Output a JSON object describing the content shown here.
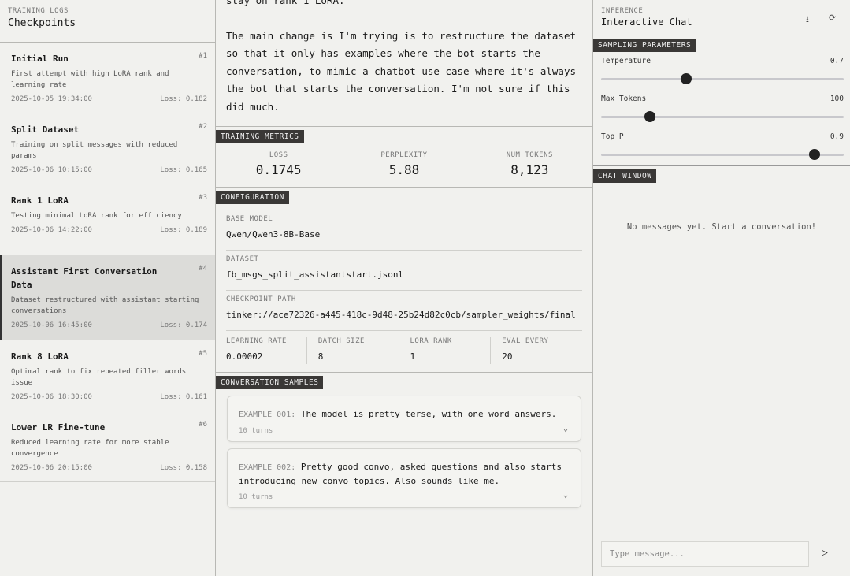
{
  "left": {
    "eyebrow": "TRAINING LOGS",
    "title": "Checkpoints",
    "items": [
      {
        "name": "Initial Run",
        "num": "#1",
        "desc": "First attempt with high LoRA rank and learning rate",
        "date": "2025-10-05 19:34:00",
        "loss": "Loss: 0.182"
      },
      {
        "name": "Split Dataset",
        "num": "#2",
        "desc": "Training on split messages with reduced params",
        "date": "2025-10-06 10:15:00",
        "loss": "Loss: 0.165"
      },
      {
        "name": "Rank 1 LoRA",
        "num": "#3",
        "desc": "Testing minimal LoRA rank for efficiency",
        "date": "2025-10-06 14:22:00",
        "loss": "Loss: 0.189"
      },
      {
        "name": "Assistant First Conversation Data",
        "num": "#4",
        "desc": "Dataset restructured with assistant starting conversations",
        "date": "2025-10-06 16:45:00",
        "loss": "Loss: 0.174",
        "selected": true
      },
      {
        "name": "Rank 8 LoRA",
        "num": "#5",
        "desc": "Optimal rank to fix repeated filler words issue",
        "date": "2025-10-06 18:30:00",
        "loss": "Loss: 0.161"
      },
      {
        "name": "Lower LR Fine-tune",
        "num": "#6",
        "desc": "Reduced learning rate for more stable convergence",
        "date": "2025-10-06 20:15:00",
        "loss": "Loss: 0.158"
      }
    ]
  },
  "mid": {
    "notes": [
      "stay on rank 1 LoRA.",
      "The main change is I'm trying is to restructure the dataset so that it only has examples where the bot starts the conversation, to mimic a chatbot use case where it's always the bot that starts the conversation. I'm not sure if this did much."
    ],
    "metrics": {
      "tag": "TRAINING METRICS",
      "items": [
        {
          "label": "LOSS",
          "value": "0.1745"
        },
        {
          "label": "PERPLEXITY",
          "value": "5.88"
        },
        {
          "label": "NUM TOKENS",
          "value": "8,123"
        }
      ]
    },
    "config": {
      "tag": "CONFIGURATION",
      "base_model_label": "BASE MODEL",
      "base_model": "Qwen/Qwen3-8B-Base",
      "dataset_label": "DATASET",
      "dataset": "fb_msgs_split_assistantstart.jsonl",
      "path_label": "CHECKPOINT PATH",
      "path": "tinker://ace72326-a445-418c-9d48-25b24d82c0cb/sampler_weights/final",
      "params": [
        {
          "label": "LEARNING RATE",
          "value": "0.00002"
        },
        {
          "label": "BATCH SIZE",
          "value": "8"
        },
        {
          "label": "LORA RANK",
          "value": "1"
        },
        {
          "label": "EVAL EVERY",
          "value": "20"
        }
      ]
    },
    "samples": {
      "tag": "CONVERSATION SAMPLES",
      "items": [
        {
          "label": "EXAMPLE 001:",
          "text": "The model is pretty terse, with one word answers.",
          "turns": "10 turns"
        },
        {
          "label": "EXAMPLE 002:",
          "text": "Pretty good convo, asked questions and also starts introducing new convo topics. Also sounds like me.",
          "turns": "10 turns"
        }
      ]
    }
  },
  "right": {
    "eyebrow": "INFERENCE",
    "title": "Interactive Chat",
    "icons": [
      "download-icon",
      "refresh-icon"
    ],
    "sampling_tag": "SAMPLING PARAMETERS",
    "sliders": [
      {
        "label": "Temperature",
        "value": "0.7",
        "level_pct": 35
      },
      {
        "label": "Max Tokens",
        "value": "100",
        "level_pct": 20
      },
      {
        "label": "Top P",
        "value": "0.9",
        "level_pct": 88
      }
    ],
    "chat_tag": "CHAT WINDOW",
    "empty": "No messages yet. Start a conversation!",
    "input_placeholder": "Type message..."
  }
}
